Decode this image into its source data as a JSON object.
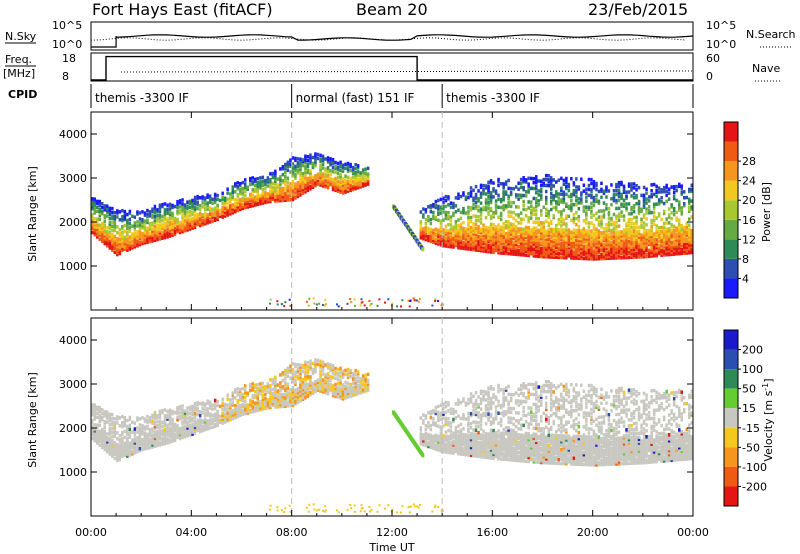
{
  "header": {
    "title": "Fort Hays East (fitACF)",
    "beam": "Beam 20",
    "date": "23/Feb/2015"
  },
  "top_panels": {
    "nsky_label": "N.Sky",
    "nsky_ticks": [
      "10^5",
      "10^0"
    ],
    "nsearch_label": "N.Search",
    "nsearch_ticks": [
      "10^5",
      "10^0"
    ],
    "freq_label": "Freq.",
    "freq_unit": "[MHz]",
    "freq_ticks": [
      "18",
      "8"
    ],
    "nave_label": "Nave",
    "nave_ticks": [
      "60",
      "0"
    ],
    "cpid_label": "CPID",
    "cpid_segments": [
      {
        "label": "themis -3300 IF",
        "start_hour": 0.0,
        "end_hour": 8.0
      },
      {
        "label": "normal (fast) 151 IF",
        "start_hour": 8.0,
        "end_hour": 14.0
      },
      {
        "label": "themis -3300 IF",
        "start_hour": 14.0,
        "end_hour": 24.0
      }
    ]
  },
  "power_panel": {
    "ylabel": "Slant Range [km]",
    "yticks": [
      "1000",
      "2000",
      "3000",
      "4000"
    ],
    "colorbar_label": "Power [dB]",
    "colorbar_ticks": [
      "4",
      "8",
      "12",
      "16",
      "20",
      "24",
      "28"
    ],
    "colors": [
      "#1a1aff",
      "#2c4fb0",
      "#2e8b57",
      "#66aa44",
      "#a8c832",
      "#f0c81e",
      "#f5961e",
      "#f05a14",
      "#e61414"
    ]
  },
  "velocity_panel": {
    "ylabel": "Slant Range [km]",
    "yticks": [
      "1000",
      "2000",
      "3000",
      "4000"
    ],
    "colorbar_label": "Velocity [m s",
    "colorbar_label_sup": "-1",
    "colorbar_label_end": "]",
    "colorbar_ticks": [
      "200",
      "100",
      "50",
      "15",
      "-15",
      "-50",
      "-100",
      "-200"
    ],
    "colors": [
      "#1a1acc",
      "#2a4fb0",
      "#2e8b57",
      "#66cc33",
      "#c8c8c0",
      "#f5c81e",
      "#f5961e",
      "#f05a14",
      "#e61414"
    ]
  },
  "xaxis": {
    "label": "Time UT",
    "ticks": [
      "00:00",
      "04:00",
      "08:00",
      "12:00",
      "16:00",
      "20:00",
      "00:00"
    ]
  },
  "chart_data": {
    "type": "heatmap",
    "title": "Fort Hays East (fitACF)",
    "subtitle": "Beam 20",
    "date": "23/Feb/2015",
    "xlabel": "Time UT",
    "ylabel": "Slant Range [km]",
    "xlim_hours": [
      0,
      24
    ],
    "ylim_km": [
      0,
      4500
    ],
    "freq_series": {
      "name": "Freq.",
      "ylim": [
        8,
        18
      ],
      "x_hours": [
        0.0,
        0.6,
        0.6,
        13.0,
        13.0,
        24.0
      ],
      "values": [
        8,
        8,
        17,
        17,
        8,
        8
      ]
    },
    "power_echo_band": {
      "x_hours": [
        0,
        1,
        2,
        3,
        4,
        5,
        6,
        7,
        8,
        9,
        10,
        11,
        12,
        13,
        14,
        16,
        18,
        20,
        22,
        24
      ],
      "inner_edge_km": [
        1800,
        1300,
        1550,
        1700,
        1900,
        2100,
        2350,
        2500,
        2550,
        2900,
        2700,
        2900,
        null,
        1700,
        1500,
        1350,
        1250,
        1200,
        1250,
        1350
      ],
      "outer_edge_km": [
        2600,
        2300,
        2300,
        2500,
        2600,
        2700,
        3000,
        3100,
        3500,
        3600,
        3400,
        3300,
        null,
        2300,
        2600,
        3000,
        3100,
        3000,
        2900,
        2900
      ]
    },
    "velocity_range": {
      "min": -200,
      "max": 200,
      "unit": "m s-1"
    },
    "power_range": {
      "min": 4,
      "max": 28,
      "unit": "dB"
    }
  }
}
